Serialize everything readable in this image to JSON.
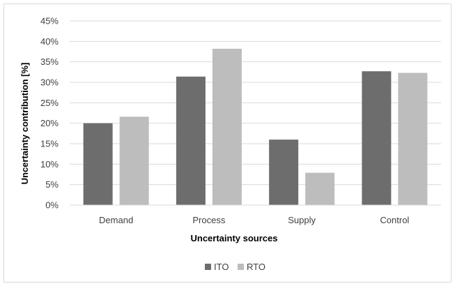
{
  "chart_data": {
    "type": "bar",
    "title": "",
    "xlabel": "Uncertainty sources",
    "ylabel": "Uncertainty contribution [%]",
    "categories": [
      "Demand",
      "Process",
      "Supply",
      "Control"
    ],
    "series": [
      {
        "name": "ITO",
        "values": [
          20,
          31.4,
          16,
          32.7
        ],
        "color": "#6d6d6d"
      },
      {
        "name": "RTO",
        "values": [
          21.6,
          38.2,
          7.9,
          32.3
        ],
        "color": "#bdbdbd"
      }
    ],
    "ylim": [
      0,
      45
    ],
    "yticks": [
      "0%",
      "5%",
      "10%",
      "15%",
      "20%",
      "25%",
      "30%",
      "35%",
      "40%",
      "45%"
    ],
    "ytick_values": [
      0,
      5,
      10,
      15,
      20,
      25,
      30,
      35,
      40,
      45
    ],
    "grid": true,
    "legend_position": "bottom"
  }
}
